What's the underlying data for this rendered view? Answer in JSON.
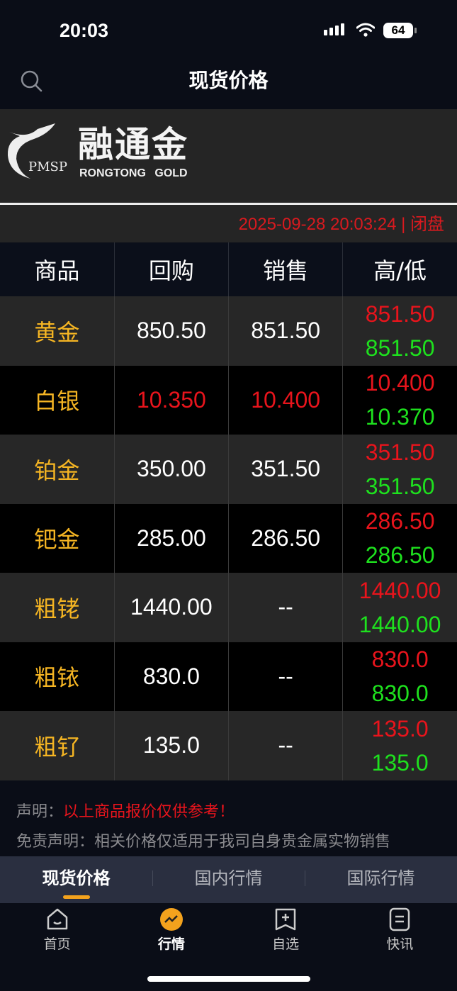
{
  "status_bar": {
    "time": "20:03",
    "battery": "64"
  },
  "header": {
    "title": "现货价格"
  },
  "banner": {
    "logo_cn": "融通金",
    "logo_en": "RONGTONG GOLD",
    "logo_mark": "PMSP"
  },
  "timestamp": "2025-09-28 20:03:24 | 闭盘",
  "table": {
    "headers": [
      "商品",
      "回购",
      "销售",
      "高/低"
    ],
    "rows": [
      {
        "name": "黄金",
        "buy": "850.50",
        "sell": "851.50",
        "high": "851.50",
        "low": "851.50",
        "buy_color": "white",
        "sell_color": "white"
      },
      {
        "name": "白银",
        "buy": "10.350",
        "sell": "10.400",
        "high": "10.400",
        "low": "10.370",
        "buy_color": "red",
        "sell_color": "red"
      },
      {
        "name": "铂金",
        "buy": "350.00",
        "sell": "351.50",
        "high": "351.50",
        "low": "351.50",
        "buy_color": "white",
        "sell_color": "white"
      },
      {
        "name": "钯金",
        "buy": "285.00",
        "sell": "286.50",
        "high": "286.50",
        "low": "286.50",
        "buy_color": "white",
        "sell_color": "white"
      },
      {
        "name": "粗铑",
        "buy": "1440.00",
        "sell": "--",
        "high": "1440.00",
        "low": "1440.00",
        "buy_color": "white",
        "sell_color": "white"
      },
      {
        "name": "粗铱",
        "buy": "830.0",
        "sell": "--",
        "high": "830.0",
        "low": "830.0",
        "buy_color": "white",
        "sell_color": "white"
      },
      {
        "name": "粗钌",
        "buy": "135.0",
        "sell": "--",
        "high": "135.0",
        "low": "135.0",
        "buy_color": "white",
        "sell_color": "white"
      }
    ]
  },
  "notice": {
    "label": "声明：",
    "text": "以上商品报价仅供参考！",
    "disclaimer": "免责声明：相关价格仅适用于我司自身贵金属实物销售"
  },
  "sub_tabs": [
    {
      "label": "现货价格",
      "active": true
    },
    {
      "label": "国内行情"
    },
    {
      "label": "国际行情"
    }
  ],
  "bottom_nav": [
    {
      "label": "首页",
      "icon": "home-icon"
    },
    {
      "label": "行情",
      "icon": "market-trend-icon",
      "active": true
    },
    {
      "label": "自选",
      "icon": "bookmark-add-icon"
    },
    {
      "label": "快讯",
      "icon": "news-icon"
    }
  ],
  "colors": {
    "accent": "#f3a21d",
    "up": "#e8141c",
    "down": "#1ee11e",
    "name": "#f5b523"
  }
}
